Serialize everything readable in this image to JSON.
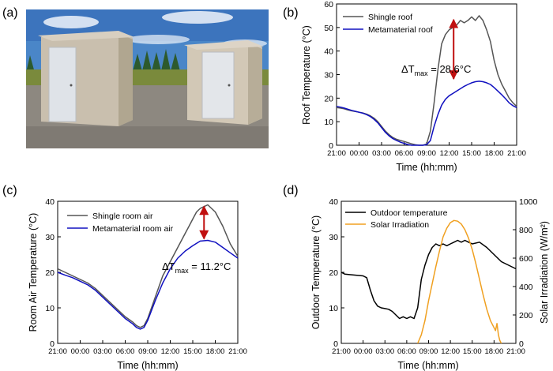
{
  "panels": {
    "a": {
      "label": "(a)"
    },
    "b": {
      "label": "(b)"
    },
    "c": {
      "label": "(c)"
    },
    "d": {
      "label": "(d)"
    }
  },
  "chart_data": [
    {
      "id": "b",
      "type": "line",
      "ylabel": "Roof Temperature (°C)",
      "xlabel": "Time (hh:mm)",
      "ylim": [
        0,
        60
      ],
      "yticks": [
        "0",
        "10",
        "20",
        "30",
        "40",
        "50",
        "60"
      ],
      "xticks": [
        "21:00",
        "00:00",
        "03:00",
        "06:00",
        "09:00",
        "12:00",
        "15:00",
        "18:00",
        "21:00"
      ],
      "series": [
        {
          "name": "Shingle roof",
          "color": "#555555",
          "x": [
            0,
            0.5,
            1,
            1.5,
            2,
            2.5,
            3,
            3.5,
            4,
            4.5,
            5,
            5.5,
            6,
            6.5,
            7,
            7.5,
            8,
            8.5,
            9,
            9.5,
            10,
            10.5,
            11,
            11.5,
            12,
            12.5,
            13,
            13.5,
            14,
            14.5,
            15,
            15.5,
            16,
            16.5,
            17,
            17.5,
            18,
            18.5,
            19,
            19.5,
            20,
            20.5,
            21,
            21.5,
            22,
            22.5,
            23,
            23.5,
            24
          ],
          "y": [
            16,
            15.8,
            15.5,
            15,
            14.6,
            14.3,
            14,
            13.7,
            13.2,
            12.5,
            11.5,
            10,
            8,
            6,
            4.5,
            3.3,
            2.5,
            2,
            1.6,
            1.1,
            0.6,
            0.2,
            0,
            0,
            0.5,
            6,
            18,
            32,
            43,
            47,
            49,
            50,
            51,
            53,
            52,
            53,
            54.5,
            53,
            55,
            53,
            49,
            44,
            36,
            30,
            26,
            23,
            20,
            18,
            16.5
          ]
        },
        {
          "name": "Metamaterial roof",
          "color": "#1010c0",
          "x": [
            0,
            0.5,
            1,
            1.5,
            2,
            2.5,
            3,
            3.5,
            4,
            4.5,
            5,
            5.5,
            6,
            6.5,
            7,
            7.5,
            8,
            8.5,
            9,
            9.5,
            10,
            10.5,
            11,
            11.5,
            12,
            12.5,
            13,
            13.5,
            14,
            14.5,
            15,
            15.5,
            16,
            16.5,
            17,
            17.5,
            18,
            18.5,
            19,
            19.5,
            20,
            20.5,
            21,
            21.5,
            22,
            22.5,
            23,
            23.5,
            24
          ],
          "y": [
            16.5,
            16.2,
            15.8,
            15.3,
            14.8,
            14.4,
            14,
            13.6,
            13,
            12.2,
            11,
            9.5,
            7.5,
            5.5,
            4,
            2.8,
            2,
            1.3,
            0.8,
            0.3,
            0,
            0,
            0,
            0,
            0.2,
            2,
            8,
            13,
            17,
            19.5,
            21,
            22,
            23,
            24,
            25,
            25.8,
            26.5,
            27,
            27.2,
            27,
            26.5,
            25.8,
            24.5,
            23,
            21.5,
            19.8,
            18,
            16.8,
            16
          ]
        }
      ],
      "annotation": {
        "prefix": "ΔT",
        "sub": "max",
        "value": " = 28.6°C",
        "from_y": 54,
        "to_y": 27.5,
        "at_x": 15.6
      }
    },
    {
      "id": "c",
      "type": "line",
      "ylabel": "Room Air Temperature (°C)",
      "xlabel": "Time (hh:mm)",
      "ylim": [
        0,
        40
      ],
      "yticks": [
        "0",
        "10",
        "20",
        "30",
        "40"
      ],
      "xticks": [
        "21:00",
        "00:00",
        "03:00",
        "06:00",
        "09:00",
        "12:00",
        "15:00",
        "18:00",
        "21:00"
      ],
      "series": [
        {
          "name": "Shingle room air",
          "color": "#555555",
          "x": [
            0,
            1,
            2,
            3,
            4,
            5,
            6,
            7,
            8,
            9,
            10,
            10.5,
            11,
            11.5,
            12,
            13,
            14,
            15,
            16,
            17,
            17.5,
            18,
            18.5,
            19,
            20,
            21,
            22,
            23,
            24
          ],
          "y": [
            21,
            20,
            19,
            18,
            17,
            15.5,
            13.5,
            11.5,
            9.5,
            7.5,
            6,
            5,
            4.5,
            5,
            7,
            13,
            19,
            23,
            27,
            31,
            33,
            35,
            37,
            38,
            39,
            37,
            33,
            28,
            24.5
          ]
        },
        {
          "name": "Metamaterial room air",
          "color": "#1010c0",
          "x": [
            0,
            1,
            2,
            3,
            4,
            5,
            6,
            7,
            8,
            9,
            10,
            10.5,
            11,
            11.5,
            12,
            13,
            14,
            15,
            16,
            17,
            18,
            19,
            20,
            21,
            22,
            23,
            24
          ],
          "y": [
            20,
            19.2,
            18.5,
            17.5,
            16.5,
            15,
            13,
            11,
            9,
            7,
            5.5,
            4.5,
            4,
            4.5,
            6.5,
            12,
            17,
            21,
            24,
            26,
            27.5,
            28.8,
            29,
            28.5,
            27,
            25.5,
            24
          ]
        }
      ],
      "annotation": {
        "prefix": "ΔT",
        "sub": "max",
        "value": " = 11.2°C",
        "from_y": 39,
        "to_y": 29,
        "at_x": 19.5
      }
    },
    {
      "id": "d",
      "type": "line",
      "ylabel": "Outdoor Temperature (°C)",
      "ylabel_right": "Solar Irradiation (W/m²)",
      "xlabel": "Time (hh:mm)",
      "ylim": [
        0,
        40
      ],
      "ylim_right": [
        0,
        1000
      ],
      "yticks": [
        "0",
        "10",
        "20",
        "30",
        "40"
      ],
      "yticks_right": [
        "0",
        "200",
        "400",
        "600",
        "800",
        "1000"
      ],
      "xticks": [
        "21:00",
        "00:00",
        "03:00",
        "06:00",
        "09:00",
        "12:00",
        "15:00",
        "18:00",
        "21:00"
      ],
      "series": [
        {
          "name": "Outdoor temperature",
          "color": "#000000",
          "axis": "left",
          "x": [
            0,
            0.5,
            1,
            2,
            3,
            3.5,
            4,
            4.5,
            5,
            5.5,
            6,
            6.5,
            7,
            7.5,
            8,
            8.5,
            9,
            9.5,
            10,
            10.5,
            11,
            11.5,
            12,
            12.5,
            13,
            13.5,
            14,
            14.5,
            15,
            15.5,
            16,
            16.5,
            17,
            17.5,
            18,
            19,
            20,
            21,
            22,
            23,
            24
          ],
          "y": [
            20,
            19.5,
            19.4,
            19.2,
            19,
            18.5,
            15,
            12,
            10.5,
            10,
            9.8,
            9.6,
            9,
            8,
            7,
            7.5,
            7,
            7.5,
            7,
            10,
            18,
            22,
            25,
            27,
            28,
            27.5,
            28,
            27.5,
            28,
            28.5,
            29,
            28.5,
            29,
            28.5,
            28,
            28.5,
            27,
            25,
            23,
            22,
            21
          ]
        },
        {
          "name": "Solar Irradiation",
          "color": "#f0a020",
          "axis": "right",
          "x": [
            10.5,
            11,
            11.5,
            12,
            12.5,
            13,
            13.5,
            14,
            14.5,
            15,
            15.5,
            16,
            16.5,
            17,
            17.5,
            18,
            18.5,
            19,
            19.5,
            20,
            20.5,
            21,
            21.2,
            21.4,
            21.6,
            21.8,
            22
          ],
          "y": [
            0,
            60,
            160,
            300,
            420,
            540,
            650,
            750,
            810,
            850,
            865,
            860,
            840,
            800,
            740,
            660,
            560,
            450,
            340,
            240,
            160,
            110,
            90,
            140,
            60,
            20,
            0
          ]
        }
      ]
    }
  ]
}
